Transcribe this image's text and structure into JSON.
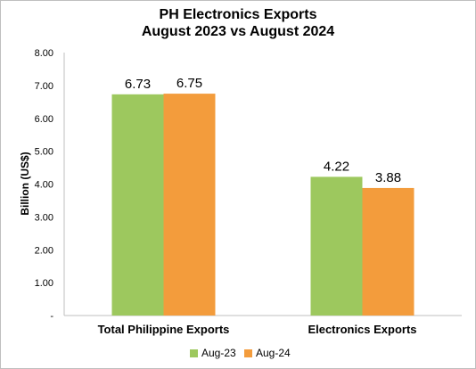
{
  "chart_data": {
    "type": "bar",
    "title_line1": "PH Electronics Exports",
    "title_line2": "August 2023 vs August 2024",
    "ylabel": "Billion (US$)",
    "categories": [
      "Total Philippine Exports",
      "Electronics Exports"
    ],
    "series": [
      {
        "name": "Aug-23",
        "color": "#9dc85e",
        "values": [
          6.73,
          4.22
        ]
      },
      {
        "name": "Aug-24",
        "color": "#f39c3c",
        "values": [
          6.75,
          3.88
        ]
      }
    ],
    "data_labels": [
      [
        "6.73",
        "4.22"
      ],
      [
        "6.75",
        "3.88"
      ]
    ],
    "ylim": [
      0,
      8
    ],
    "yticks": [
      "-",
      "1.00",
      "2.00",
      "3.00",
      "4.00",
      "5.00",
      "6.00",
      "7.00",
      "8.00"
    ],
    "grid": false,
    "legend": "bottom"
  }
}
